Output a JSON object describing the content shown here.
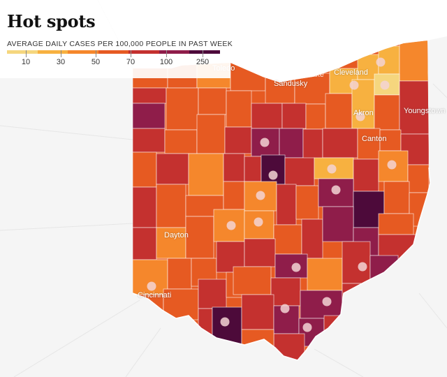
{
  "header": {
    "title": "Hot spots",
    "subtitle": "AVERAGE DAILY CASES PER 100,000 PEOPLE IN PAST WEEK"
  },
  "legend": {
    "colors": [
      "#f5d67e",
      "#f7b140",
      "#f5872c",
      "#e65a22",
      "#c4312f",
      "#8f1d4a",
      "#4d0a3a"
    ],
    "ticks": [
      "10",
      "30",
      "50",
      "70",
      "100",
      "250"
    ]
  },
  "cities": {
    "toledo": "Toledo",
    "sandusky": "Sandusky",
    "cleveland": "Cleveland",
    "akron": "Akron",
    "youngstown": "Youngstown",
    "canton": "Canton",
    "dayton": "Dayton",
    "cincinnati": "Cincinnati"
  },
  "lake": {
    "label": "Lake"
  },
  "colors": {
    "background": "#f5f5f5",
    "water": "#ffffff",
    "county_border": "#ffffff",
    "hotspot_dot": "#f3d4d4"
  }
}
